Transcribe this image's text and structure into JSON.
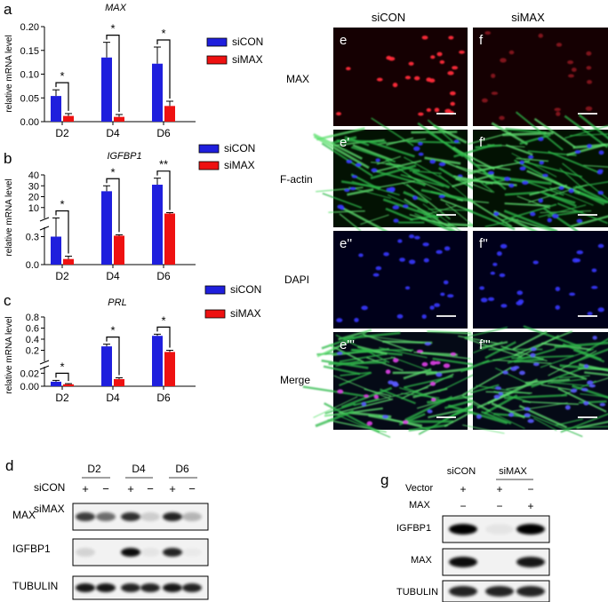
{
  "panels": {
    "a": {
      "letter": "a",
      "title": "MAX",
      "ylabel": "relative mRNA level"
    },
    "b": {
      "letter": "b",
      "title": "IGFBP1",
      "ylabel": "relative mRNA level"
    },
    "c": {
      "letter": "c",
      "title": "PRL",
      "ylabel": "relative mRNA level"
    },
    "d": {
      "letter": "d"
    },
    "g": {
      "letter": "g"
    }
  },
  "legend": {
    "sicon": "siCON",
    "simax": "siMAX"
  },
  "colors": {
    "sicon": "#1f1fdd",
    "simax": "#ee1111"
  },
  "chart_data": [
    {
      "type": "bar",
      "title": "MAX",
      "ylabel": "relative mRNA level",
      "categories": [
        "D2",
        "D4",
        "D6"
      ],
      "series": [
        {
          "name": "siCON",
          "values": [
            0.054,
            0.135,
            0.122
          ],
          "errors": [
            0.013,
            0.032,
            0.035
          ]
        },
        {
          "name": "siMAX",
          "values": [
            0.012,
            0.01,
            0.033
          ],
          "errors": [
            0.005,
            0.005,
            0.01
          ]
        }
      ],
      "ylim": [
        0,
        0.2
      ],
      "yticks": [
        "0.00",
        "0.05",
        "0.10",
        "0.15",
        "0.20"
      ],
      "significance": [
        "*",
        "*",
        "*"
      ]
    },
    {
      "type": "bar",
      "title": "IGFBP1",
      "ylabel": "relative mRNA level",
      "categories": [
        "D2",
        "D4",
        "D6"
      ],
      "series": [
        {
          "name": "siCON",
          "values": [
            0.3,
            25,
            31
          ],
          "errors": [
            0.12,
            5,
            6
          ]
        },
        {
          "name": "siMAX",
          "values": [
            0.06,
            0.31,
            4.5
          ],
          "errors": [
            0.03,
            0.01,
            0.8
          ]
        }
      ],
      "axis_break": true,
      "lower_ylim": [
        0,
        0.4
      ],
      "upper_ylim": [
        0,
        40
      ],
      "yticks_lower": [
        "0.0",
        "0.3"
      ],
      "yticks_upper": [
        "10",
        "20",
        "30",
        "40"
      ],
      "significance": [
        "*",
        "*",
        "**"
      ]
    },
    {
      "type": "bar",
      "title": "PRL",
      "ylabel": "relative mRNA level",
      "categories": [
        "D2",
        "D4",
        "D6"
      ],
      "series": [
        {
          "name": "siCON",
          "values": [
            0.007,
            0.27,
            0.46
          ],
          "errors": [
            0.002,
            0.04,
            0.03
          ]
        },
        {
          "name": "siMAX",
          "values": [
            0.003,
            0.011,
            0.17
          ],
          "errors": [
            0.001,
            0.002,
            0.03
          ]
        }
      ],
      "axis_break": true,
      "lower_ylim": [
        0,
        0.03
      ],
      "upper_ylim": [
        0,
        0.8
      ],
      "yticks_lower": [
        "0.00",
        "0.02"
      ],
      "yticks_upper": [
        "0.2",
        "0.4",
        "0.6",
        "0.8"
      ],
      "significance": [
        "*",
        "*",
        "*"
      ]
    }
  ],
  "blot_d": {
    "days": [
      "D2",
      "D4",
      "D6"
    ],
    "rows": [
      {
        "label": "siCON",
        "marks": [
          "+",
          "−",
          "+",
          "−",
          "+",
          "−"
        ]
      },
      {
        "label": "siMAX",
        "marks": [
          "−",
          "+",
          "−",
          "+",
          "−",
          "+"
        ]
      }
    ],
    "bands": [
      "MAX",
      "IGFBP1",
      "TUBULIN"
    ]
  },
  "micro": {
    "cols": [
      "siCON",
      "siMAX"
    ],
    "rows": [
      {
        "label": "MAX",
        "left": "e",
        "right": "f"
      },
      {
        "label": "F-actin",
        "left": "e'",
        "right": "f'"
      },
      {
        "label": "DAPI",
        "left": "e''",
        "right": "f''"
      },
      {
        "label": "Merge",
        "left": "e'''",
        "right": "f'''"
      }
    ]
  },
  "blot_g": {
    "groups": [
      "siCON",
      "siMAX"
    ],
    "rows": [
      {
        "label": "Vector",
        "marks": [
          "+",
          "+",
          "−"
        ]
      },
      {
        "label": "MAX",
        "marks": [
          "−",
          "−",
          "+"
        ]
      }
    ],
    "bands": [
      "IGFBP1",
      "MAX",
      "TUBULIN"
    ]
  }
}
